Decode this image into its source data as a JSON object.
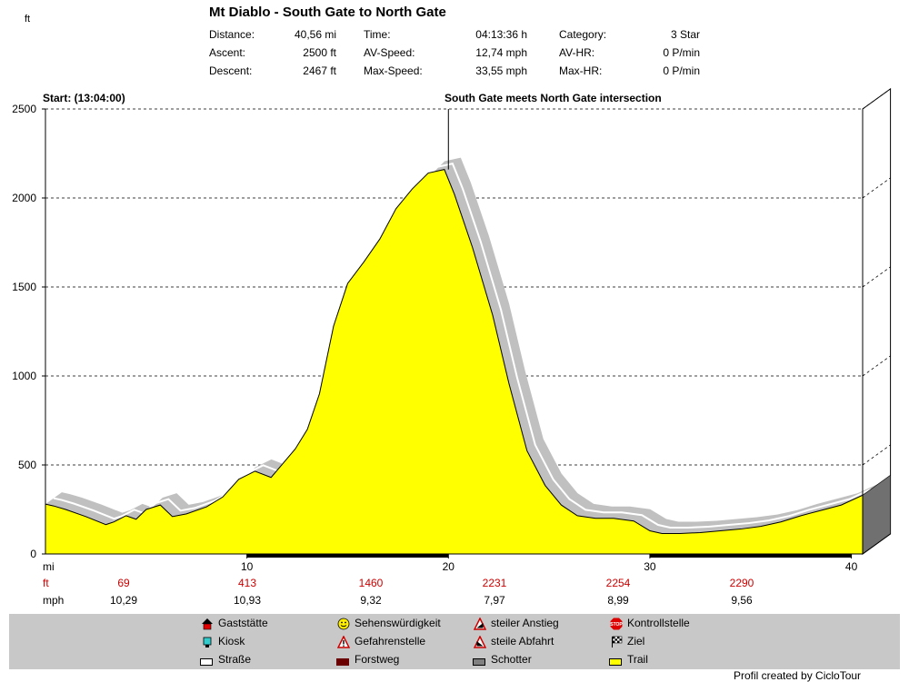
{
  "header": {
    "title": "Mt Diablo - South Gate to North Gate",
    "stats": [
      {
        "label": "Distance:",
        "value": "40,56 mi"
      },
      {
        "label": "Ascent:",
        "value": "2500 ft"
      },
      {
        "label": "Descent:",
        "value": "2467 ft"
      },
      {
        "label": "Time:",
        "value": "04:13:36 h"
      },
      {
        "label": "AV-Speed:",
        "value": "12,74 mph"
      },
      {
        "label": "Max-Speed:",
        "value": "33,55 mph"
      },
      {
        "label": "Category:",
        "value": "3 Star"
      },
      {
        "label": "AV-HR:",
        "value": "0 P/min"
      },
      {
        "label": "Max-HR:",
        "value": "0 P/min"
      }
    ]
  },
  "chart_data": {
    "type": "area",
    "ylabel": "ft",
    "xlabel": "mi",
    "ylim": [
      0,
      2500
    ],
    "xlim": [
      0,
      40.56
    ],
    "y_ticks": [
      "0",
      "500",
      "1000",
      "1500",
      "2000",
      "2500"
    ],
    "x_ticks": [
      "10",
      "20",
      "30",
      "40"
    ],
    "grid": true,
    "annotations": {
      "start": "Start: (13:04:00)",
      "waypoint": "South Gate meets North Gate intersection",
      "waypoint_x": 20.0
    },
    "series": [
      {
        "name": "Trail",
        "color": "#ffff00",
        "x": [
          0,
          0.4,
          1,
          2,
          3,
          3.4,
          4,
          4.5,
          5,
          5.7,
          6.3,
          7,
          8,
          8.8,
          9.6,
          10.4,
          11.2,
          11.8,
          12.4,
          13,
          13.6,
          14.3,
          15,
          15.8,
          16.6,
          17.4,
          18.2,
          19,
          19.8,
          20.3,
          21.2,
          22.2,
          23,
          23.9,
          24.8,
          25.6,
          26.4,
          27.3,
          28.2,
          29.2,
          30,
          30.6,
          31.5,
          32.5,
          33.5,
          34.5,
          35.5,
          36.5,
          37.5,
          38.5,
          39.5,
          40.56
        ],
        "y": [
          280,
          270,
          250,
          210,
          165,
          180,
          215,
          195,
          250,
          275,
          210,
          225,
          265,
          320,
          420,
          465,
          430,
          510,
          590,
          700,
          900,
          1280,
          1520,
          1640,
          1770,
          1940,
          2050,
          2140,
          2160,
          2020,
          1720,
          1340,
          960,
          580,
          385,
          275,
          215,
          200,
          200,
          185,
          130,
          115,
          115,
          120,
          130,
          140,
          155,
          180,
          215,
          245,
          275,
          330
        ]
      }
    ],
    "surface_segments": [
      {
        "name": "Forstweg",
        "x_start": 10,
        "x_end": 20
      },
      {
        "name": "Forstweg",
        "x_start": 30,
        "x_end": 40
      }
    ],
    "stats_rows": {
      "ft": [
        "69",
        "413",
        "1460",
        "2231",
        "2254",
        "2290"
      ],
      "mph": [
        "10,29",
        "10,93",
        "9,32",
        "7,97",
        "8,99",
        "9,56"
      ]
    }
  },
  "legend": [
    {
      "label": "Gaststätte",
      "icon": "house-icon"
    },
    {
      "label": "Sehenswürdigkeit",
      "icon": "smiley-icon"
    },
    {
      "label": "steiler Anstieg",
      "icon": "steep-ascent-icon"
    },
    {
      "label": "Kontrollstelle",
      "icon": "stop-sign-icon"
    },
    {
      "label": "Kiosk",
      "icon": "cup-icon"
    },
    {
      "label": "Gefahrenstelle",
      "icon": "warning-icon"
    },
    {
      "label": "steile Abfahrt",
      "icon": "steep-descent-icon"
    },
    {
      "label": "Ziel",
      "icon": "checkered-flag-icon"
    },
    {
      "label": "Straße",
      "icon": "road-swatch-icon"
    },
    {
      "label": "Forstweg",
      "icon": "forest-path-swatch-icon"
    },
    {
      "label": "Schotter",
      "icon": "gravel-swatch-icon"
    },
    {
      "label": "Trail",
      "icon": "trail-swatch-icon"
    }
  ],
  "footer": {
    "credit": "Profil created by CicloTour"
  },
  "colors": {
    "trail": "#ffff00",
    "shadow": "#c0c0c0",
    "forstweg": "#000000",
    "legend_bg": "#c8c8c8",
    "stats_red": "#cc0000"
  }
}
